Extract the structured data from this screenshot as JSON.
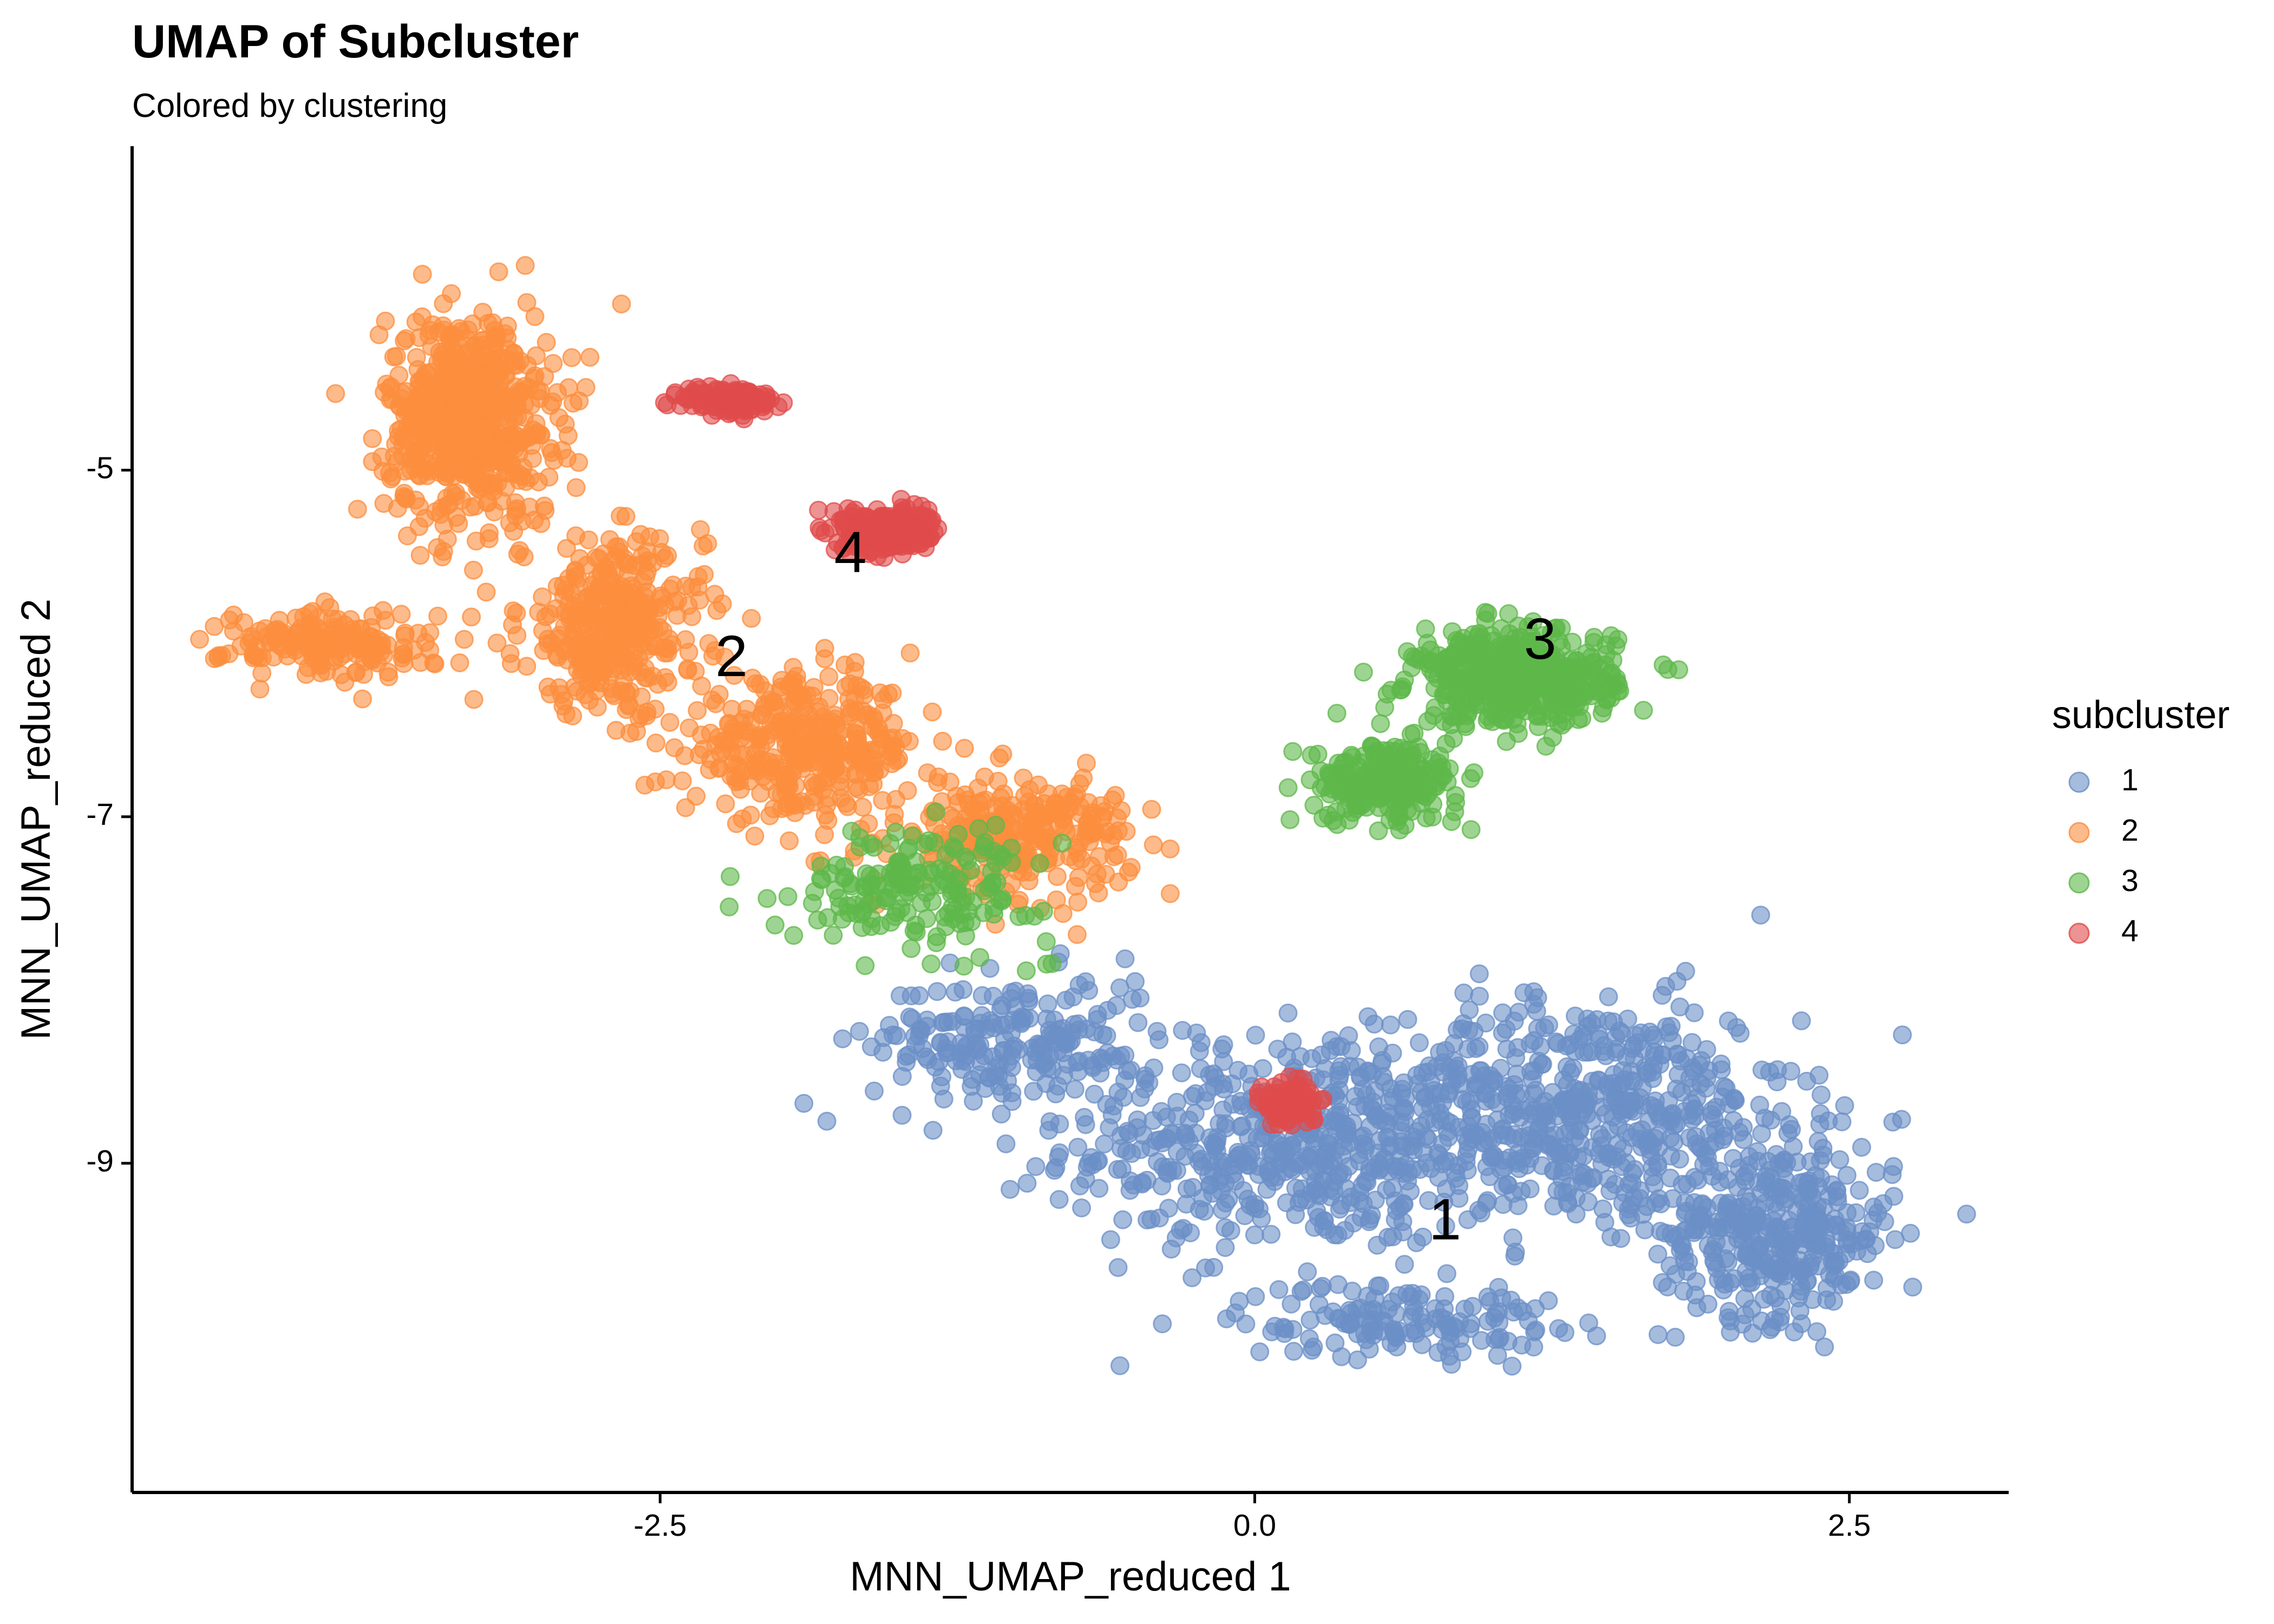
{
  "chart_data": {
    "type": "scatter",
    "title": "UMAP of Subcluster",
    "subtitle": "Colored by clustering",
    "xlabel": "MNN_UMAP_reduced 1",
    "ylabel": "MNN_UMAP_reduced 2",
    "xlim": [
      -4.72,
      3.17
    ],
    "ylim": [
      -10.9,
      -3.13
    ],
    "xticks": [
      {
        "value": -2.5,
        "label": "-2.5"
      },
      {
        "value": 0.0,
        "label": "0.0"
      },
      {
        "value": 2.5,
        "label": "2.5"
      }
    ],
    "yticks": [
      {
        "value": -5,
        "label": "-5"
      },
      {
        "value": -7,
        "label": "-7"
      },
      {
        "value": -9,
        "label": "-9"
      }
    ],
    "grid": false,
    "legend": {
      "title": "subcluster",
      "placement": "right",
      "entries": [
        {
          "label": "1",
          "color": "#6B8FC7"
        },
        {
          "label": "2",
          "color": "#FC8D3E"
        },
        {
          "label": "3",
          "color": "#5DB84A"
        },
        {
          "label": "4",
          "color": "#E04B4B"
        }
      ]
    },
    "series": [
      {
        "name": "1",
        "color": "#6B8FC7",
        "regions": [
          {
            "center": [
              0.2,
              -8.9
            ],
            "spread": [
              0.9,
              0.55
            ],
            "weight": 0.3
          },
          {
            "center": [
              1.4,
              -8.7
            ],
            "spread": [
              0.8,
              0.6
            ],
            "weight": 0.3
          },
          {
            "center": [
              2.2,
              -9.4
            ],
            "spread": [
              0.45,
              0.45
            ],
            "weight": 0.2
          },
          {
            "center": [
              -1.0,
              -8.3
            ],
            "spread": [
              0.55,
              0.35
            ],
            "weight": 0.12
          },
          {
            "center": [
              0.6,
              -9.9
            ],
            "spread": [
              0.6,
              0.2
            ],
            "weight": 0.08
          }
        ],
        "centroid_label": {
          "text": "1",
          "x": 0.8,
          "y": -9.35
        }
      },
      {
        "name": "2",
        "color": "#FC8D3E",
        "regions": [
          {
            "center": [
              -3.3,
              -4.7
            ],
            "spread": [
              0.32,
              0.55
            ],
            "weight": 0.35
          },
          {
            "center": [
              -2.7,
              -5.9
            ],
            "spread": [
              0.35,
              0.45
            ],
            "weight": 0.2
          },
          {
            "center": [
              -1.9,
              -6.6
            ],
            "spread": [
              0.45,
              0.35
            ],
            "weight": 0.2
          },
          {
            "center": [
              -1.0,
              -7.1
            ],
            "spread": [
              0.45,
              0.3
            ],
            "weight": 0.15
          },
          {
            "center": [
              -3.9,
              -6.0
            ],
            "spread": [
              0.4,
              0.18
            ],
            "weight": 0.1
          }
        ],
        "centroid_label": {
          "text": "2",
          "x": -2.2,
          "y": -6.1
        }
      },
      {
        "name": "3",
        "color": "#5DB84A",
        "regions": [
          {
            "center": [
              1.1,
              -6.2
            ],
            "spread": [
              0.38,
              0.25
            ],
            "weight": 0.55
          },
          {
            "center": [
              0.55,
              -6.8
            ],
            "spread": [
              0.28,
              0.2
            ],
            "weight": 0.25
          },
          {
            "center": [
              -1.4,
              -7.4
            ],
            "spread": [
              0.5,
              0.3
            ],
            "weight": 0.2
          }
        ],
        "centroid_label": {
          "text": "3",
          "x": 1.2,
          "y": -6.0
        }
      },
      {
        "name": "4",
        "color": "#E04B4B",
        "regions": [
          {
            "center": [
              -1.55,
              -5.35
            ],
            "spread": [
              0.16,
              0.1
            ],
            "weight": 0.65
          },
          {
            "center": [
              -2.2,
              -4.6
            ],
            "spread": [
              0.18,
              0.08
            ],
            "weight": 0.2
          },
          {
            "center": [
              0.15,
              -8.65
            ],
            "spread": [
              0.1,
              0.12
            ],
            "weight": 0.15
          }
        ],
        "centroid_label": {
          "text": "4",
          "x": -1.7,
          "y": -5.5
        }
      }
    ]
  }
}
